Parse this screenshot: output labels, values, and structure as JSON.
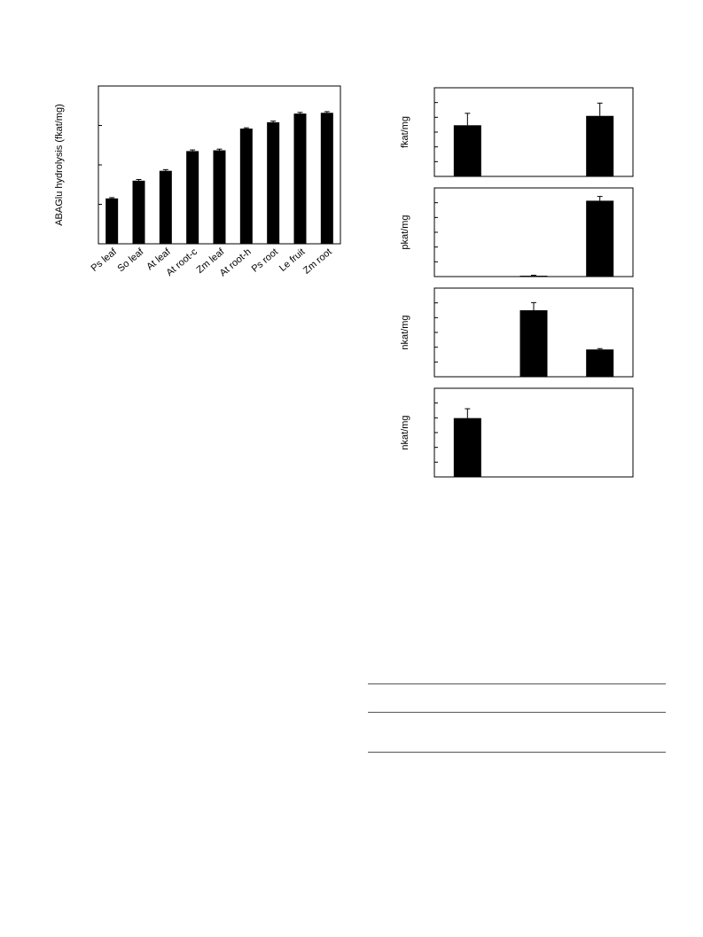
{
  "chart_data": [
    {
      "type": "bar",
      "ylabel": "ABAGlu hydrolysis (fkat/mg)",
      "categories": [
        "Ps leaf",
        "So leaf",
        "At leaf",
        "At root-c",
        "Zm leaf",
        "At root-h",
        "Ps root",
        "Le fruit",
        "Zm root"
      ],
      "values": [
        1.15,
        1.6,
        1.85,
        2.35,
        2.37,
        2.92,
        3.08,
        3.3,
        3.32
      ],
      "errors": [
        0.02,
        0.03,
        0.03,
        0.03,
        0.03,
        0.02,
        0.03,
        0.03,
        0.03
      ],
      "ylim": [
        0,
        4
      ]
    },
    {
      "type": "bar",
      "ylabel": "fkat/mg",
      "values": [
        3.0,
        0,
        3.55
      ],
      "errors": [
        0.7,
        0,
        0.75
      ],
      "ylim": [
        0,
        5.2
      ]
    },
    {
      "type": "bar",
      "ylabel": "pkat/mg",
      "values": [
        0,
        0.05,
        4.45
      ],
      "errors": [
        0,
        0.03,
        0.25
      ],
      "ylim": [
        0,
        5.2
      ]
    },
    {
      "type": "bar",
      "ylabel": "nkat/mg",
      "values": [
        0,
        3.9,
        1.6
      ],
      "errors": [
        0,
        0.45,
        0.05
      ],
      "ylim": [
        0,
        5.2
      ]
    },
    {
      "type": "bar",
      "ylabel": "nkat/mg",
      "values": [
        3.45,
        0,
        0
      ],
      "errors": [
        0.55,
        0,
        0
      ],
      "ylim": [
        0,
        5.2
      ]
    }
  ]
}
